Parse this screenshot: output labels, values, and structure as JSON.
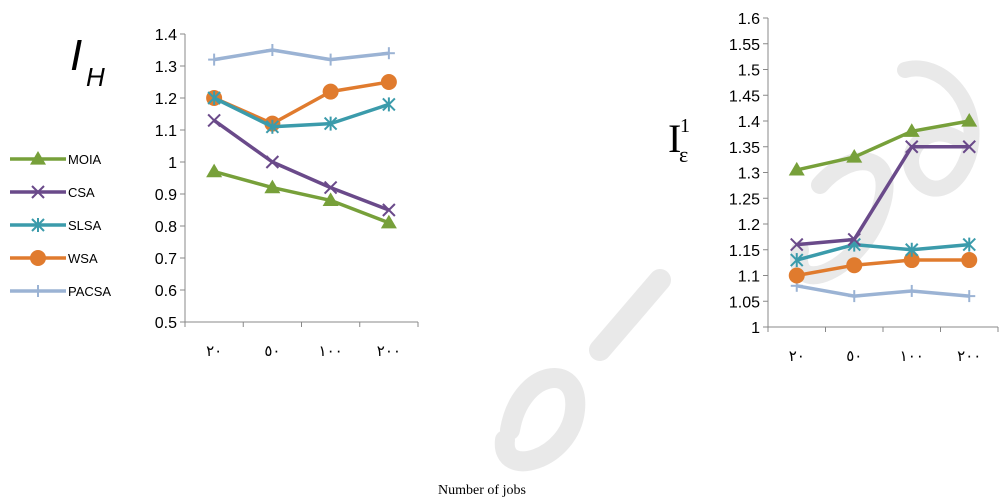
{
  "chart_data": [
    {
      "type": "line",
      "id": "left",
      "title": "",
      "categories": [
        "٢٠",
        "٥٠",
        "١٠٠",
        "٢٠٠"
      ],
      "ylim": [
        0.5,
        1.4
      ],
      "yticks": [
        0.5,
        0.6,
        0.7,
        0.8,
        0.9,
        1,
        1.1,
        1.2,
        1.3,
        1.4
      ],
      "ytick_labels": [
        "0.5",
        "0.6",
        "0.7",
        "0.8",
        "0.9",
        "1",
        "1.1",
        "1.2",
        "1.3",
        "1.4"
      ],
      "series": [
        {
          "name": "MOIA",
          "values": [
            0.97,
            0.92,
            0.88,
            0.81
          ]
        },
        {
          "name": "CSA",
          "values": [
            1.13,
            1.0,
            0.92,
            0.85
          ]
        },
        {
          "name": "SLSA",
          "values": [
            1.2,
            1.11,
            1.12,
            1.18
          ]
        },
        {
          "name": "WSA",
          "values": [
            1.2,
            1.12,
            1.22,
            1.25
          ]
        },
        {
          "name": "PACSA",
          "values": [
            1.32,
            1.35,
            1.32,
            1.34
          ]
        }
      ],
      "legend_position": "left",
      "grid": false
    },
    {
      "type": "line",
      "id": "right",
      "title": "",
      "categories": [
        "٢٠",
        "٥٠",
        "١٠٠",
        "٢٠٠"
      ],
      "ylim": [
        1,
        1.6
      ],
      "yticks": [
        1,
        1.05,
        1.1,
        1.15,
        1.2,
        1.25,
        1.3,
        1.35,
        1.4,
        1.45,
        1.5,
        1.55,
        1.6
      ],
      "ytick_labels": [
        "1",
        "1.05",
        "1.1",
        "1.15",
        "1.2",
        "1.25",
        "1.3",
        "1.35",
        "1.4",
        "1.45",
        "1.5",
        "1.55",
        "1.6"
      ],
      "series": [
        {
          "name": "MOIA",
          "values": [
            1.305,
            1.33,
            1.38,
            1.4
          ]
        },
        {
          "name": "CSA",
          "values": [
            1.16,
            1.17,
            1.35,
            1.35
          ]
        },
        {
          "name": "SLSA",
          "values": [
            1.13,
            1.16,
            1.15,
            1.16
          ]
        },
        {
          "name": "WSA",
          "values": [
            1.1,
            1.12,
            1.13,
            1.13
          ]
        },
        {
          "name": "PACSA",
          "values": [
            1.08,
            1.06,
            1.07,
            1.06
          ]
        }
      ],
      "legend_position": "none",
      "grid": false
    }
  ],
  "series_colors": {
    "MOIA": "#77a03a",
    "CSA": "#6a4a8a",
    "SLSA": "#3b9bab",
    "WSA": "#e07b2e",
    "PACSA": "#9bb3d4"
  },
  "series_markers": {
    "MOIA": "triangle",
    "CSA": "x",
    "SLSA": "star",
    "WSA": "circle",
    "PACSA": "plus"
  },
  "labels": {
    "left_metric_symbol": "I",
    "left_metric_subscript": "H",
    "right_metric_symbol": "I",
    "right_metric_subscript": "ε",
    "right_metric_superscript": "1",
    "x_caption": "Number of jobs"
  }
}
